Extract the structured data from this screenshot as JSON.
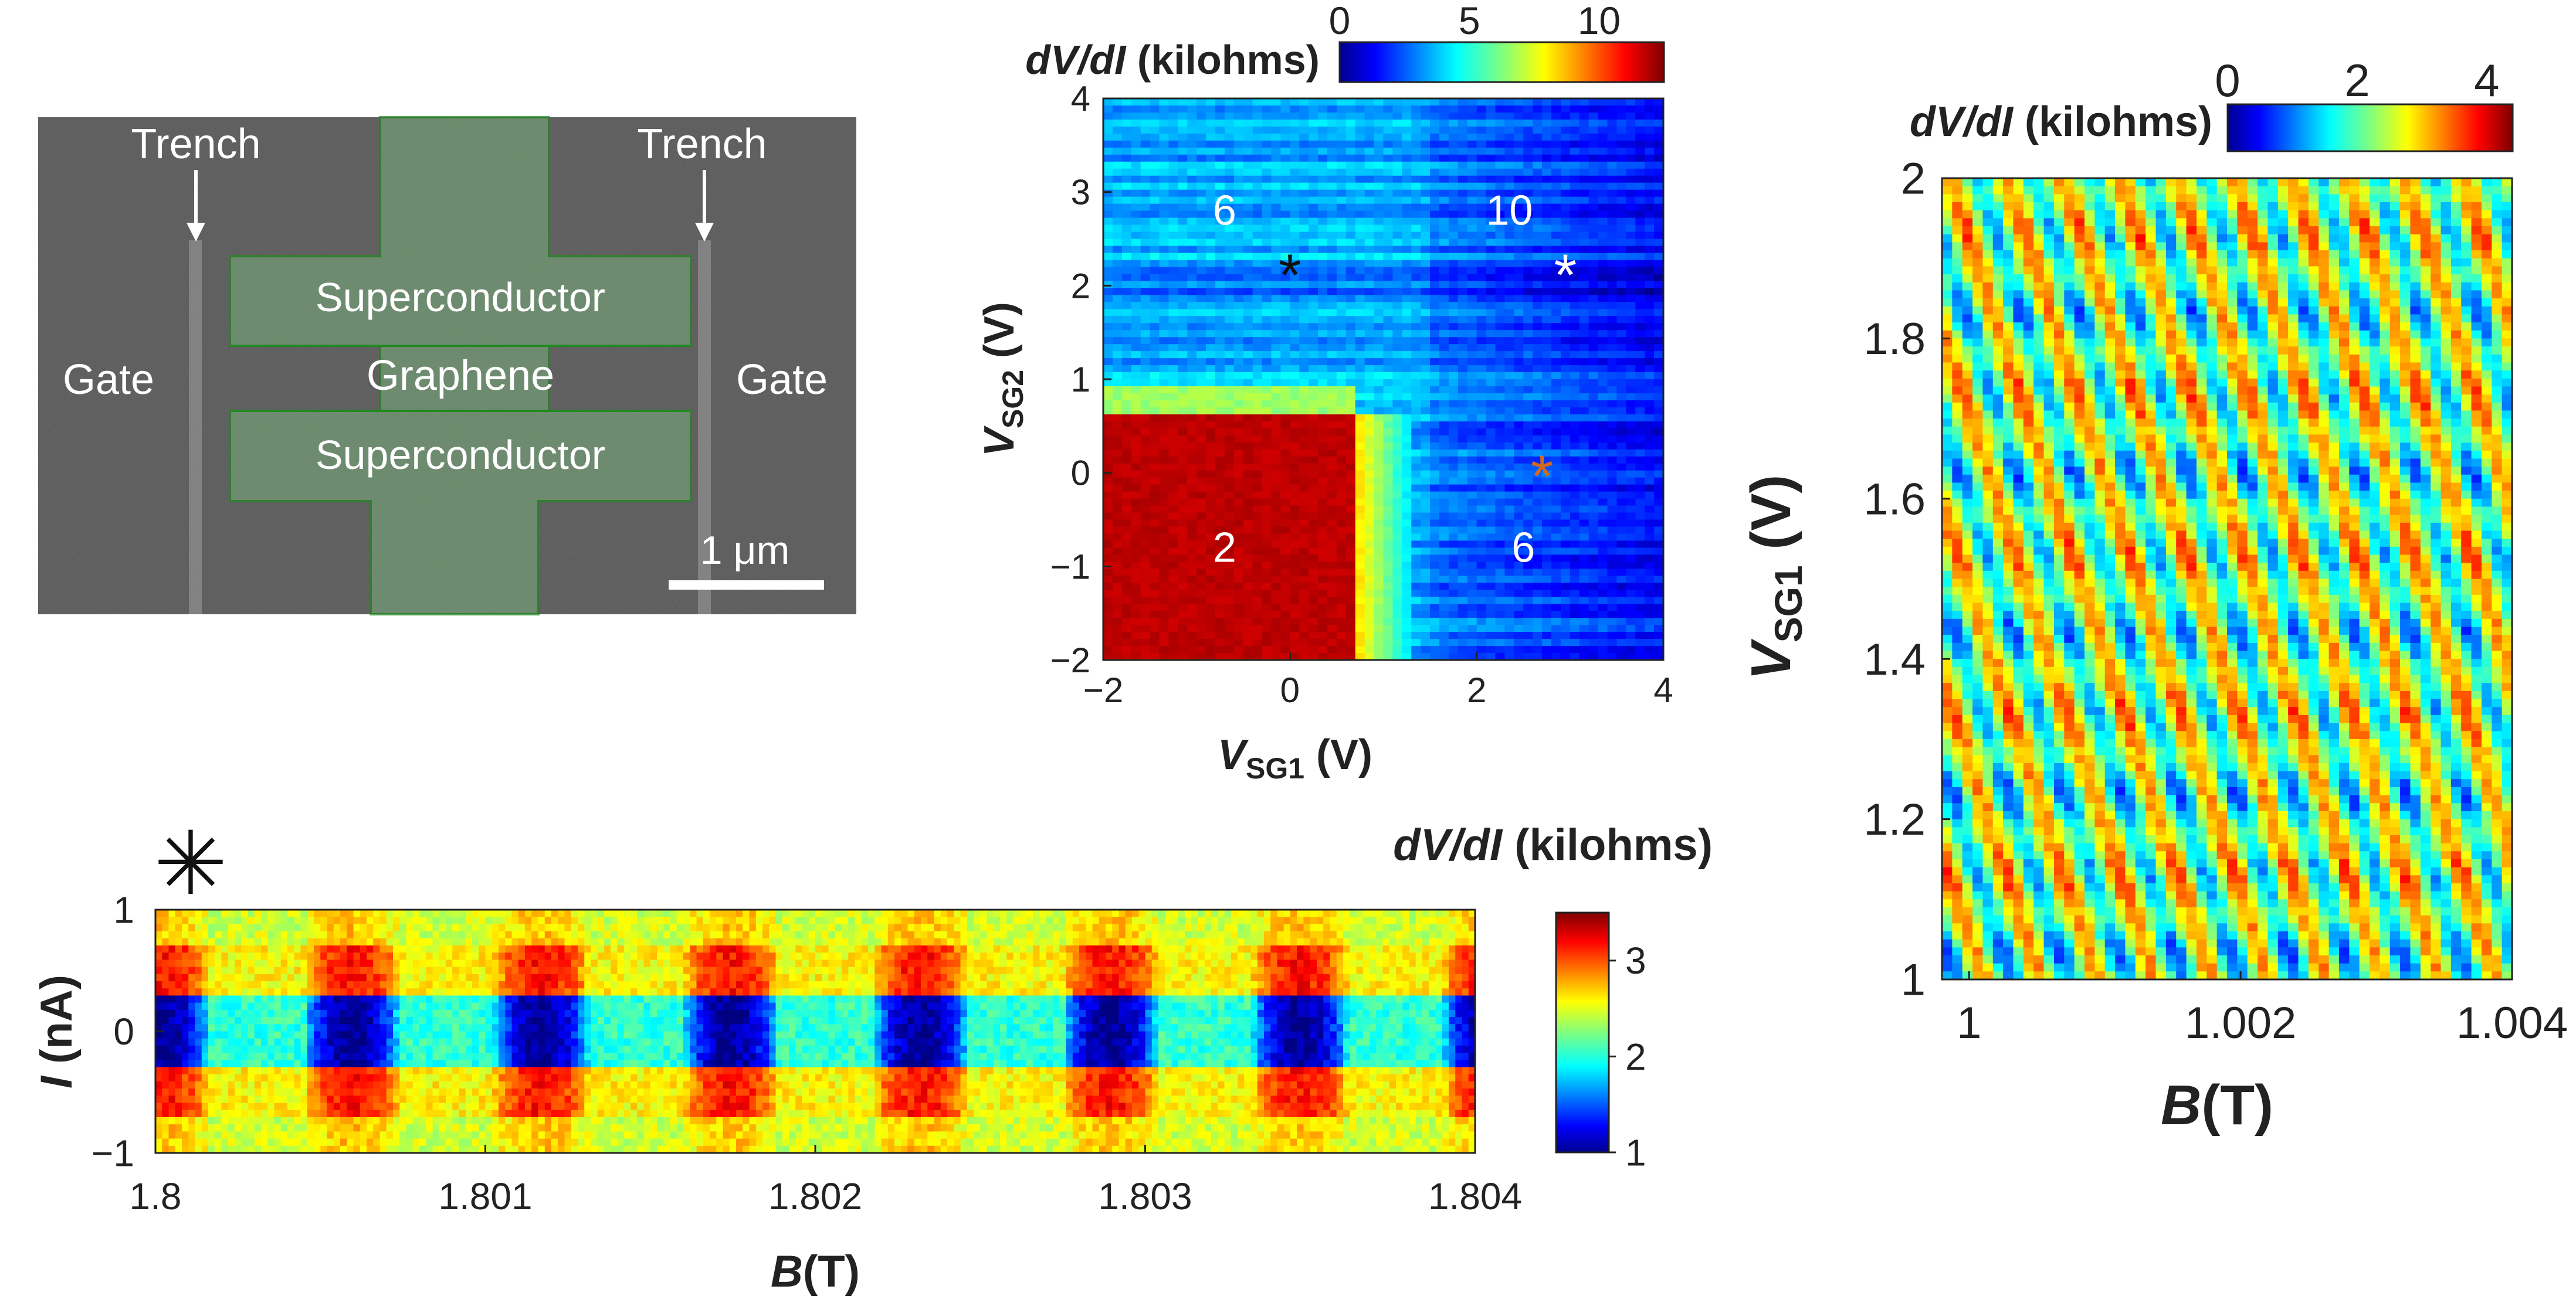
{
  "sem": {
    "labels": {
      "trench_left": "Trench",
      "trench_right": "Trench",
      "superconductor_top": "Superconductor",
      "superconductor_bottom": "Superconductor",
      "gate_left": "Gate",
      "gate_right": "Gate",
      "graphene": "Graphene",
      "scalebar": "1 μm"
    },
    "colors": {
      "background": "#5a5a5a",
      "overlay": "#6f9a72",
      "outline": "#1f8a1f",
      "text": "#ffffff"
    }
  },
  "chart_data": [
    {
      "id": "gate-map",
      "type": "heatmap",
      "title": "",
      "xlabel_main": "V",
      "xlabel_sub": "SG1",
      "xlabel_unit": " (V)",
      "ylabel_main": "V",
      "ylabel_sub": "SG2",
      "ylabel_unit": " (V)",
      "xlim": [
        -2,
        4
      ],
      "ylim": [
        -2,
        4
      ],
      "xticks": [
        "−2",
        "0",
        "2",
        "4"
      ],
      "yticks": [
        "−2",
        "−1",
        "0",
        "1",
        "2",
        "3",
        "4"
      ],
      "colorbar": {
        "label_italic": "dV/dI",
        "label_unit": " (kilohms)",
        "ticks": [
          "0",
          "5",
          "10"
        ],
        "range": [
          0,
          12.5
        ]
      },
      "regions": [
        {
          "label": "6",
          "vsg1": -0.7,
          "vsg2": 2.8
        },
        {
          "label": "10",
          "vsg1": 2.35,
          "vsg2": 2.8
        },
        {
          "label": "2",
          "vsg1": -0.7,
          "vsg2": -0.8
        },
        {
          "label": "6",
          "vsg1": 2.5,
          "vsg2": -0.8
        }
      ],
      "markers": [
        {
          "symbol": "*",
          "color": "#111111",
          "vsg1": 0.0,
          "vsg2": 2.15
        },
        {
          "symbol": "*",
          "color": "#ffffff",
          "vsg1": 2.95,
          "vsg2": 2.15
        },
        {
          "symbol": "*",
          "color": "#d2691e",
          "vsg1": 2.7,
          "vsg2": 0.0
        }
      ]
    },
    {
      "id": "bias-vs-field",
      "type": "heatmap",
      "marker": "✳",
      "xlabel_main": "B",
      "xlabel_unit": "(T)",
      "ylabel_main": "I",
      "ylabel_unit": " (nA)",
      "xlim": [
        1.8,
        1.804
      ],
      "ylim": [
        -1,
        1
      ],
      "xticks": [
        "1.8",
        "1.801",
        "1.802",
        "1.803",
        "1.804"
      ],
      "yticks": [
        "−1",
        "0",
        "1"
      ],
      "oscillation_period_T": 0.000575,
      "colorbar": {
        "label_italic": "dV/dI",
        "label_unit": " (kilohms)",
        "ticks": [
          "1",
          "2",
          "3"
        ],
        "range": [
          1,
          3.5
        ]
      }
    },
    {
      "id": "gate-vs-field",
      "type": "heatmap",
      "xlabel_main": "B",
      "xlabel_unit": "(T)",
      "ylabel_main": "V",
      "ylabel_sub": "SG1",
      "ylabel_unit": " (V)",
      "xlim": [
        0.9998,
        1.004
      ],
      "ylim": [
        1,
        2
      ],
      "xticks": [
        "1",
        "1.002",
        "1.004"
      ],
      "yticks": [
        "1",
        "1.2",
        "1.4",
        "1.6",
        "1.8",
        "2"
      ],
      "colorbar": {
        "label_italic": "dV/dI",
        "label_unit": " (kilohms)",
        "ticks": [
          "0",
          "2",
          "4"
        ],
        "range": [
          0,
          4.4
        ]
      }
    }
  ]
}
